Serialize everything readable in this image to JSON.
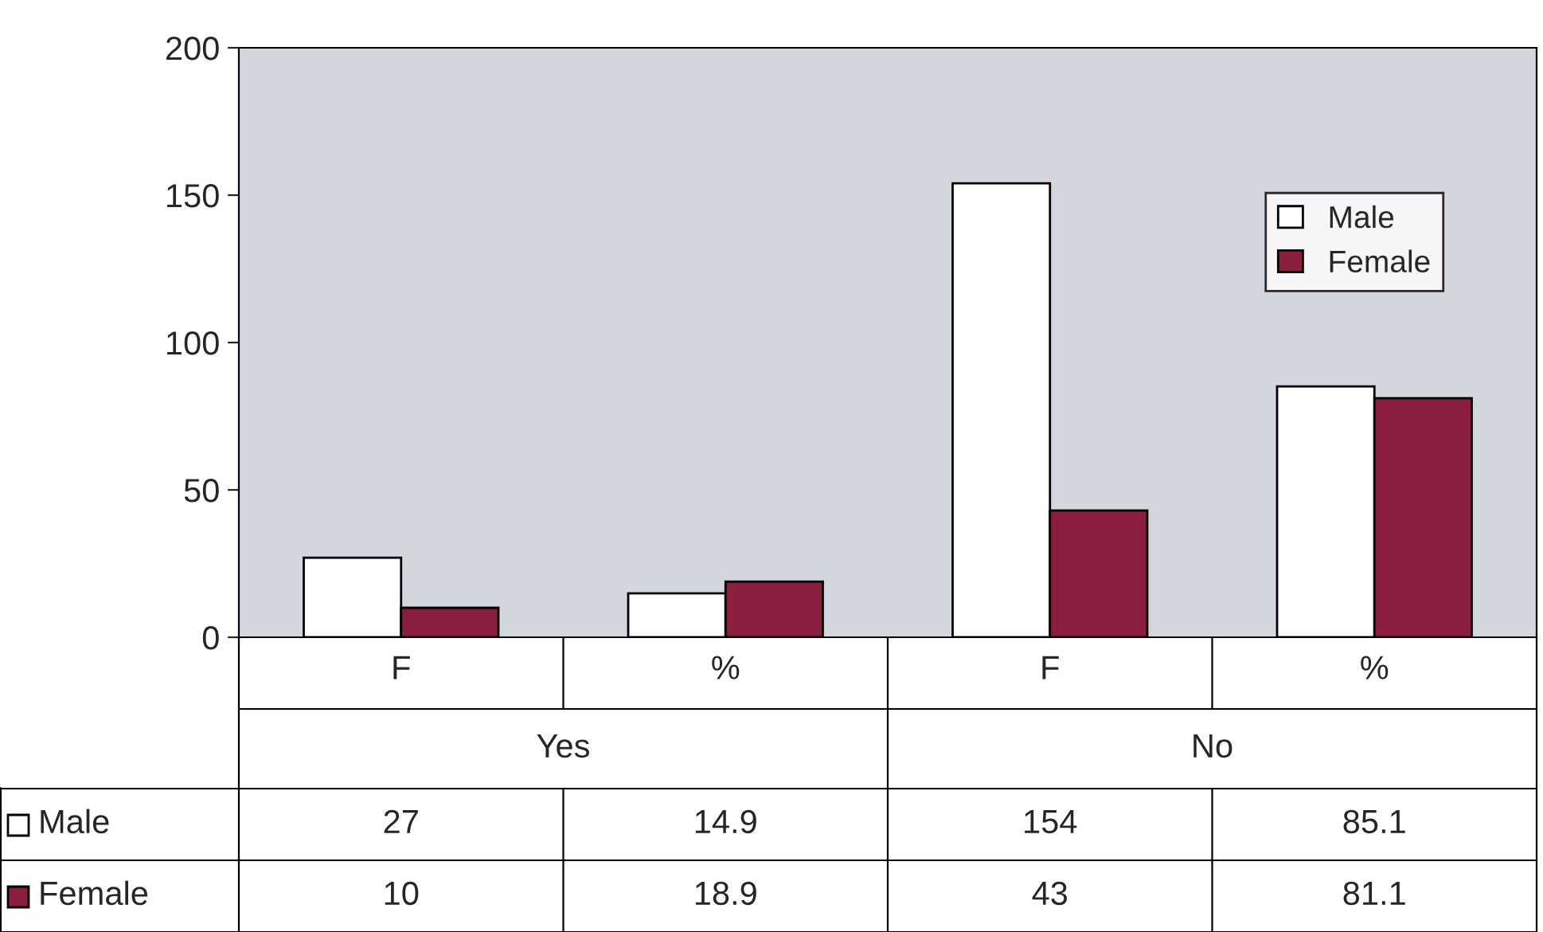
{
  "chart_data": {
    "type": "bar",
    "categories": [
      "F",
      "%",
      "F",
      "%"
    ],
    "series": [
      {
        "name": "Male",
        "color": "#ffffff",
        "values": [
          27,
          14.9,
          154,
          85.1
        ]
      },
      {
        "name": "Female",
        "color": "#8b1e3f",
        "values": [
          10,
          18.9,
          43,
          81.1
        ]
      }
    ],
    "ylim": [
      0,
      200
    ],
    "yticks": [
      0,
      50,
      100,
      150,
      200
    ],
    "grid": false,
    "legend": "top right",
    "data_labels": true,
    "annotations": [
      "Yes",
      "No"
    ]
  }
}
